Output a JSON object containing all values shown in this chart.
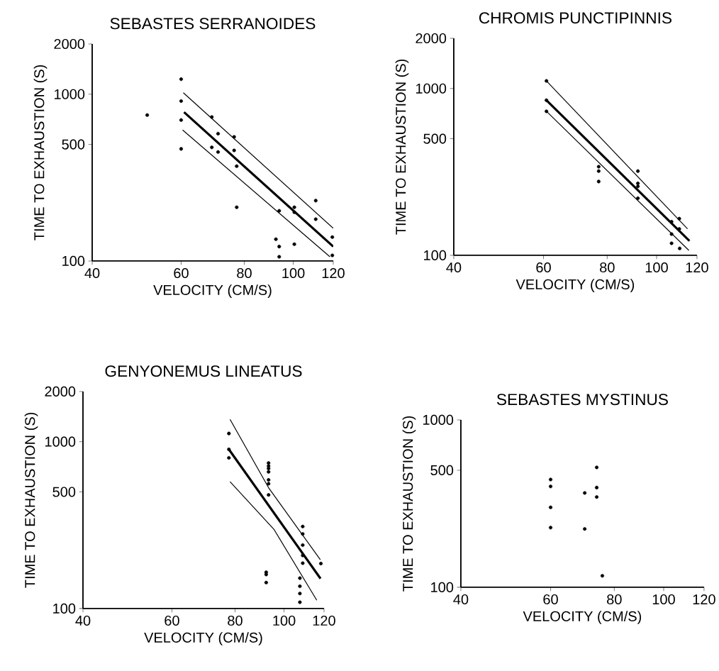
{
  "chart_data": [
    {
      "type": "scatter",
      "title": "SEBASTES SERRANOIDES",
      "xlabel": "VELOCITY (CM/S)",
      "ylabel": "TIME TO EXHAUSTION (S)",
      "log": "xy",
      "xlim": [
        40,
        120
      ],
      "ylim": [
        100,
        2000
      ],
      "xticks": [
        40,
        60,
        80,
        100,
        120
      ],
      "yticks": [
        100,
        500,
        1000,
        2000
      ],
      "series": [
        {
          "type": "scatter",
          "color": "#000000",
          "marker": "circle",
          "x": [
            60,
            60,
            51.4,
            60,
            60,
            69,
            71,
            69,
            71,
            76.4,
            76.4,
            77.3,
            77.3,
            93.8,
            92.4,
            93.8,
            93.8,
            100.5,
            100.5,
            100.5,
            110.8,
            110.8,
            119.5,
            119.5
          ],
          "values": [
            1230,
            910,
            750,
            700,
            470,
            730,
            580,
            480,
            450,
            555,
            460,
            370,
            210,
            200,
            135,
            122,
            106,
            210,
            196,
            126,
            230,
            178,
            139,
            108
          ]
        },
        {
          "type": "line",
          "color": "#000000",
          "x": [
            60.8,
            120
          ],
          "values": [
            780,
            122
          ]
        },
        {
          "type": "line",
          "color": "#000000",
          "x": [
            60.6,
            120
          ],
          "values": [
            1020,
            157
          ]
        },
        {
          "type": "line",
          "color": "#000000",
          "x": [
            60.4,
            118.2
          ],
          "values": [
            610,
            106
          ]
        }
      ]
    },
    {
      "type": "scatter",
      "title": "CHROMIS PUNCTIPINNIS",
      "xlabel": "VELOCITY (CM/S)",
      "ylabel": "TIME TO EXHAUSTION (S)",
      "log": "xy",
      "xlim": [
        40,
        120
      ],
      "ylim": [
        100,
        2000
      ],
      "xticks": [
        40,
        60,
        80,
        100,
        120
      ],
      "yticks": [
        100,
        500,
        1000,
        2000
      ],
      "series": [
        {
          "type": "scatter",
          "color": "#000000",
          "marker": "circle",
          "x": [
            60.8,
            60.8,
            60.8,
            77,
            77,
            77,
            91.9,
            91.9,
            91.9,
            91.9,
            110.8,
            107,
            110.8,
            107,
            107,
            111
          ],
          "values": [
            1110,
            850,
            730,
            340,
            320,
            277,
            320,
            270,
            259,
            220,
            166,
            159,
            144,
            134,
            118,
            110
          ]
        },
        {
          "type": "line",
          "color": "#000000",
          "x": [
            60.8,
            116
          ],
          "values": [
            850,
            122
          ]
        },
        {
          "type": "line",
          "color": "#000000",
          "x": [
            60.8,
            115
          ],
          "values": [
            1110,
            144
          ]
        },
        {
          "type": "line",
          "color": "#000000",
          "x": [
            60.8,
            115.7
          ],
          "values": [
            730,
            107
          ]
        }
      ]
    },
    {
      "type": "scatter",
      "title": "GENYONEMUS LINEATUS",
      "xlabel": "VELOCITY (CM/S)",
      "ylabel": "TIME TO EXHAUSTION (S)",
      "log": "xy",
      "xlim": [
        40,
        120
      ],
      "ylim": [
        100,
        2000
      ],
      "xticks": [
        40,
        60,
        80,
        100,
        120
      ],
      "yticks": [
        100,
        500,
        1000,
        2000
      ],
      "series": [
        {
          "type": "scatter",
          "color": "#000000",
          "marker": "circle",
          "x": [
            77.8,
            77.8,
            77.8,
            93.2,
            93.2,
            93.2,
            93.2,
            93.2,
            93.2,
            93.2,
            92.2,
            92.2,
            92.2,
            108.9,
            108.9,
            108.9,
            108.9,
            108.9,
            107.5,
            107.5,
            107.5,
            107.5,
            118.3
          ],
          "values": [
            1120,
            900,
            800,
            745,
            715,
            690,
            660,
            590,
            560,
            480,
            165,
            160,
            143,
            310,
            280,
            240,
            208,
            187,
            152,
            136,
            123,
            109,
            186
          ]
        },
        {
          "type": "line",
          "color": "#000000",
          "x": [
            77.8,
            118.1
          ],
          "values": [
            900,
            151
          ]
        },
        {
          "type": "line",
          "color": "#000000",
          "x": [
            78.2,
            93.2,
            118
          ],
          "values": [
            1360,
            530,
            196
          ]
        },
        {
          "type": "line",
          "color": "#000000",
          "x": [
            78.2,
            95.6,
            116.1
          ],
          "values": [
            576,
            297,
            112
          ]
        }
      ]
    },
    {
      "type": "scatter",
      "title": "SEBASTES MYSTINUS",
      "xlabel": "VELOCITY (CM/S)",
      "ylabel": "TIME TO EXHAUSTION (S)",
      "log": "xy",
      "xlim": [
        40,
        120
      ],
      "ylim": [
        100,
        1000
      ],
      "xticks": [
        40,
        60,
        80,
        100,
        120
      ],
      "yticks": [
        100,
        500,
        1000
      ],
      "series": [
        {
          "type": "scatter",
          "color": "#000000",
          "marker": "circle",
          "x": [
            60,
            60,
            60,
            60,
            70,
            70,
            73.9,
            73.9,
            73.9,
            75.8
          ],
          "values": [
            440,
            400,
            300,
            227,
            366,
            223,
            520,
            394,
            346,
            117
          ]
        }
      ]
    }
  ]
}
